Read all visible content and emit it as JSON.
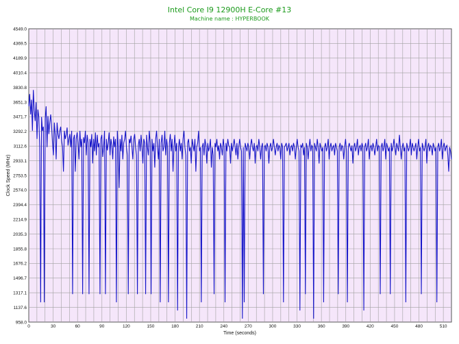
{
  "chart_data": {
    "type": "line",
    "title": "Intel Core I9 12900H E-Core #13",
    "subtitle": "Machine name : HYPERBOOK",
    "xlabel": "Time (seconds)",
    "ylabel": "Clock Speed (MHz)",
    "xlim": [
      0,
      520
    ],
    "ylim": [
      958.0,
      4549.0
    ],
    "x_ticks": [
      "0",
      "30",
      "60",
      "90",
      "120",
      "150",
      "180",
      "210",
      "240",
      "270",
      "300",
      "330",
      "360",
      "390",
      "420",
      "450",
      "480",
      "510"
    ],
    "y_ticks": [
      "4549.0",
      "4369.5",
      "4189.9",
      "4010.4",
      "3830.8",
      "3651.3",
      "3471.7",
      "3292.2",
      "3112.6",
      "2933.1",
      "2753.5",
      "2574.0",
      "2394.4",
      "2214.9",
      "2035.3",
      "1855.8",
      "1676.2",
      "1496.7",
      "1317.1",
      "1137.6",
      "958.0"
    ],
    "grid": true,
    "colors": {
      "background": "#f5e6fa",
      "grid": "#a0a0a0",
      "series": "#1515c8",
      "title": "#1a9a1a"
    },
    "series": [
      {
        "values": [
          3600,
          3750,
          3500,
          3680,
          3300,
          3800,
          3550,
          3420,
          3650,
          3200,
          3560,
          3470,
          3100,
          1200,
          3470,
          3300,
          3350,
          1200,
          3450,
          3600,
          3100,
          3480,
          3260,
          3400,
          3500,
          3350,
          3150,
          3000,
          3400,
          3250,
          2950,
          3400,
          3260,
          3200,
          3300,
          3350,
          3180,
          3100,
          2800,
          3300,
          3200,
          3250,
          3340,
          3120,
          3200,
          3260,
          3100,
          3300,
          1300,
          3200,
          3250,
          2800,
          3200,
          3280,
          3150,
          2950,
          3300,
          3100,
          3200,
          1300,
          3220,
          3150,
          3300,
          3000,
          3250,
          3150,
          1300,
          3200,
          3100,
          3260,
          2900,
          3200,
          3050,
          3280,
          3000,
          3250,
          3100,
          3150,
          1300,
          3200,
          3250,
          2980,
          3100,
          3300,
          1300,
          3200,
          3060,
          3150,
          3280,
          3000,
          3200,
          3120,
          2950,
          3230,
          3100,
          3200,
          1200,
          3300,
          3100,
          2600,
          3200,
          3050,
          3250,
          2950,
          3150,
          3200,
          3300,
          3100,
          3000,
          1300,
          3200,
          3150,
          3240,
          3100,
          2950,
          3200,
          3260,
          3100,
          3000,
          1300,
          3120,
          3200,
          3050,
          3250,
          3100,
          2900,
          3200,
          3150,
          1300,
          3250,
          3100,
          3000,
          3300,
          3150,
          1300,
          3200,
          3050,
          3150,
          2850,
          3200,
          3300,
          3100,
          2950,
          3200,
          1200,
          3150,
          3250,
          3050,
          3100,
          3300,
          3000,
          3200,
          3100,
          1200,
          3150,
          3260,
          3050,
          3200,
          2800,
          3100,
          3250,
          3050,
          3150,
          1100,
          3100,
          3200,
          3050,
          3150,
          2950,
          3200,
          3300,
          3100,
          3000,
          1000,
          3150,
          3200,
          3050,
          3100,
          2900,
          3200,
          3120,
          3050,
          3200,
          2800,
          3100,
          3150,
          3300,
          3050,
          3100,
          1200,
          3100,
          3150,
          3000,
          3200,
          3120,
          2900,
          3150,
          3050,
          3100,
          3200,
          2850,
          3100,
          3000,
          1300,
          3150,
          3100,
          3200,
          3050,
          3120,
          2950,
          3150,
          3100,
          3000,
          3200,
          3100,
          1200,
          3150,
          3050,
          3200,
          3120,
          3100,
          2900,
          3150,
          3050,
          3120,
          3200,
          3100,
          3000,
          3150,
          2950,
          3100,
          3200,
          3100,
          3050,
          1000,
          3100,
          1200,
          3150,
          3100,
          3050,
          3150,
          3100,
          2950,
          3120,
          3200,
          3100,
          3050,
          3150,
          2900,
          3100,
          3120,
          3050,
          3200,
          3100,
          2950,
          3100,
          3150,
          1300,
          3100,
          3120,
          3050,
          3150,
          3100,
          2900,
          3100,
          3150,
          3050,
          3100,
          3200,
          3100,
          3000,
          3100,
          3150,
          3050,
          3120,
          3100,
          2950,
          3150,
          3100,
          1200,
          3100,
          3120,
          3150,
          3050,
          3100,
          3150,
          3000,
          3100,
          3120,
          3050,
          3150,
          3100,
          2950,
          3100,
          3200,
          3100,
          3050,
          1100,
          3120,
          3100,
          3150,
          3000,
          3100,
          1300,
          3150,
          3100,
          2950,
          3100,
          3200,
          3050,
          3120,
          3100,
          1000,
          3150,
          3100,
          3050,
          3200,
          3100,
          2900,
          3150,
          3100,
          3050,
          3100,
          1200,
          3100,
          3150,
          3050,
          3100,
          3200,
          2950,
          3100,
          3150,
          3050,
          3100,
          3120,
          3000,
          3150,
          3100,
          3050,
          1300,
          3100,
          3150,
          3050,
          3120,
          3100,
          2950,
          3100,
          3200,
          3050,
          1200,
          3100,
          3150,
          3100,
          3050,
          3120,
          2900,
          3100,
          3150,
          3050,
          3100,
          3200,
          3000,
          3100,
          3120,
          3050,
          3150,
          3100,
          1100,
          3100,
          3150,
          3050,
          3100,
          3200,
          2950,
          3100,
          3120,
          3050,
          3150,
          3100,
          3000,
          3100,
          3200,
          3050,
          3120,
          3100,
          1300,
          3100,
          3150,
          3050,
          3100,
          3200,
          2950,
          3150,
          3100,
          3050,
          3100,
          1300,
          3150,
          3050,
          3100,
          3200,
          3100,
          3000,
          3150,
          3100,
          3050,
          3250,
          3100,
          2950,
          3100,
          3150,
          3050,
          3100,
          1200,
          3150,
          3100,
          3050,
          3100,
          3200,
          3000,
          3150,
          3100,
          3050,
          3100,
          3150,
          2950,
          3100,
          3200,
          3050,
          3100,
          1300,
          3150,
          3100,
          3050,
          3100,
          3200,
          2900,
          3100,
          3150,
          3050,
          3120,
          3100,
          3000,
          3150,
          3100,
          3050,
          3100,
          1200,
          3100,
          3150,
          3050,
          3100,
          3200,
          2950,
          3100,
          3150,
          3050,
          3100,
          3120,
          3000,
          2800,
          3100,
          3050,
          2950
        ]
      }
    ]
  }
}
